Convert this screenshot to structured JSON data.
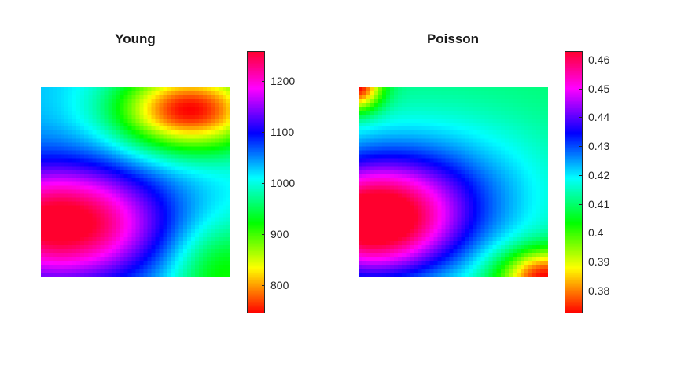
{
  "chart_data": [
    {
      "type": "heatmap",
      "title": "Young",
      "grid_size": 48,
      "colormap": "hsv",
      "colorbar": {
        "range": [
          745,
          1258
        ],
        "ticks": [
          800,
          900,
          1000,
          1100,
          1200
        ],
        "tick_labels": [
          "800",
          "900",
          "1000",
          "1100",
          "1200"
        ]
      },
      "field": {
        "description": "low (red/orange) band along top-right, high (red/magenta) lobe lower-left, blue ridge diagonal",
        "hotspots": [
          {
            "u": 0.78,
            "v": 0.12,
            "value": 745,
            "spread": 0.3
          },
          {
            "u": 0.18,
            "v": 0.72,
            "value": 1258,
            "spread": 0.38
          }
        ],
        "base": 980
      }
    },
    {
      "type": "heatmap",
      "title": "Poisson",
      "grid_size": 48,
      "colormap": "hsv",
      "colorbar": {
        "range": [
          0.372,
          0.463
        ],
        "ticks": [
          0.38,
          0.39,
          0.4,
          0.41,
          0.42,
          0.43,
          0.44,
          0.45,
          0.46
        ],
        "tick_labels": [
          "0.38",
          "0.39",
          "0.4",
          "0.41",
          "0.42",
          "0.43",
          "0.44",
          "0.45",
          "0.46"
        ]
      },
      "field": {
        "description": "high (red/magenta) lobe lower-left, low corners top-left and bottom-right, green/cyan elsewhere",
        "hotspots": [
          {
            "u": 0.08,
            "v": 0.72,
            "value": 0.463,
            "spread": 0.36
          },
          {
            "u": 0.02,
            "v": 0.02,
            "value": 0.372,
            "spread": 0.1
          },
          {
            "u": 0.97,
            "v": 0.98,
            "value": 0.372,
            "spread": 0.12
          }
        ],
        "base": 0.41
      }
    }
  ]
}
